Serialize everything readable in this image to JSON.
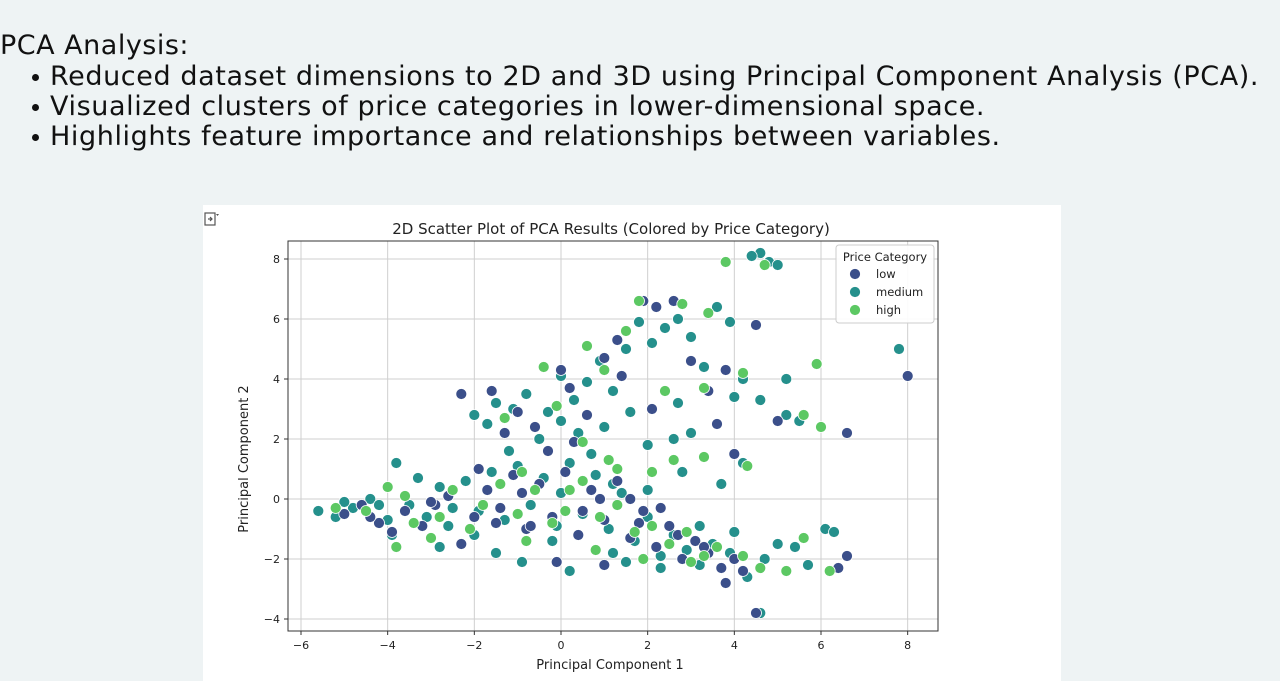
{
  "heading": "PCA Analysis:",
  "bullets": [
    "Reduced dataset dimensions to 2D and 3D using Principal Component Analysis (PCA).",
    "Visualized clusters of price categories in lower-dimensional space.",
    "Highlights feature importance and relationships between variables."
  ],
  "colors": {
    "low": "#3b4f8a",
    "medium": "#25908c",
    "high": "#5cc863",
    "page_bg": "#eef3f4",
    "grid": "#cfcfcf"
  },
  "chart_data": {
    "type": "scatter",
    "title": "2D Scatter Plot of PCA Results (Colored by Price Category)",
    "xlabel": "Principal Component 1",
    "ylabel": "Principal Component 2",
    "xlim": [
      -6.3,
      8.7
    ],
    "ylim": [
      -4.4,
      8.6
    ],
    "xticks": [
      -6,
      -4,
      -2,
      0,
      2,
      4,
      6,
      8
    ],
    "yticks": [
      -4,
      -2,
      0,
      2,
      4,
      6,
      8
    ],
    "xtick_labels": [
      "−6",
      "−4",
      "−2",
      "0",
      "2",
      "4",
      "6",
      "8"
    ],
    "ytick_labels": [
      "−4",
      "−2",
      "0",
      "2",
      "4",
      "6",
      "8"
    ],
    "grid": true,
    "legend": {
      "title": "Price Category",
      "placement": "top-right"
    },
    "series": [
      {
        "name": "low",
        "points": [
          [
            -5.0,
            -0.5
          ],
          [
            -4.6,
            -0.2
          ],
          [
            -4.2,
            -0.8
          ],
          [
            -3.9,
            -1.1
          ],
          [
            -3.6,
            -0.4
          ],
          [
            -3.2,
            -0.9
          ],
          [
            -2.9,
            -0.2
          ],
          [
            -2.6,
            0.1
          ],
          [
            -2.3,
            -1.5
          ],
          [
            -2.0,
            -0.6
          ],
          [
            -1.7,
            0.3
          ],
          [
            -1.4,
            -0.3
          ],
          [
            -1.1,
            0.8
          ],
          [
            -0.8,
            -1.0
          ],
          [
            -0.5,
            0.5
          ],
          [
            -0.2,
            -0.6
          ],
          [
            0.1,
            0.9
          ],
          [
            0.4,
            -1.2
          ],
          [
            0.7,
            0.3
          ],
          [
            1.0,
            -0.7
          ],
          [
            1.3,
            0.6
          ],
          [
            1.6,
            -1.3
          ],
          [
            1.9,
            -0.4
          ],
          [
            2.2,
            -1.6
          ],
          [
            2.5,
            -0.9
          ],
          [
            2.8,
            -2.0
          ],
          [
            3.1,
            -1.4
          ],
          [
            3.4,
            -1.8
          ],
          [
            3.7,
            -2.3
          ],
          [
            4.0,
            -2.0
          ],
          [
            4.5,
            -3.8
          ],
          [
            3.8,
            -2.8
          ],
          [
            6.6,
            -1.9
          ],
          [
            6.4,
            -2.3
          ],
          [
            -2.3,
            3.5
          ],
          [
            -1.6,
            3.6
          ],
          [
            -1.0,
            2.9
          ],
          [
            -0.6,
            2.4
          ],
          [
            0.2,
            3.7
          ],
          [
            0.6,
            2.8
          ],
          [
            1.0,
            4.7
          ],
          [
            1.4,
            4.1
          ],
          [
            1.9,
            6.6
          ],
          [
            2.2,
            6.4
          ],
          [
            2.6,
            6.6
          ],
          [
            3.0,
            4.6
          ],
          [
            3.4,
            3.6
          ],
          [
            4.5,
            5.8
          ],
          [
            3.6,
            2.5
          ],
          [
            4.0,
            1.5
          ],
          [
            5.0,
            2.6
          ],
          [
            6.6,
            2.2
          ],
          [
            8.0,
            4.1
          ],
          [
            -0.1,
            -2.1
          ],
          [
            1.0,
            -2.2
          ],
          [
            -1.3,
            2.2
          ],
          [
            0.3,
            1.9
          ],
          [
            2.1,
            3.0
          ],
          [
            -1.9,
            1.0
          ],
          [
            0.9,
            0.0
          ],
          [
            -0.3,
            1.6
          ],
          [
            -0.9,
            0.2
          ],
          [
            1.6,
            0.0
          ],
          [
            2.3,
            -0.3
          ],
          [
            -3.0,
            -0.1
          ],
          [
            0.0,
            4.3
          ],
          [
            1.3,
            5.3
          ],
          [
            3.8,
            4.3
          ],
          [
            0.5,
            -0.4
          ],
          [
            -0.7,
            -0.9
          ],
          [
            1.8,
            -0.8
          ],
          [
            2.7,
            -1.2
          ],
          [
            3.3,
            -1.6
          ],
          [
            4.2,
            -2.4
          ],
          [
            -4.4,
            -0.6
          ],
          [
            -1.5,
            -0.8
          ]
        ]
      },
      {
        "name": "medium",
        "points": [
          [
            -5.6,
            -0.4
          ],
          [
            -5.2,
            -0.6
          ],
          [
            -4.8,
            -0.3
          ],
          [
            -4.4,
            0.0
          ],
          [
            -4.0,
            -0.7
          ],
          [
            -3.8,
            1.2
          ],
          [
            -3.5,
            -0.2
          ],
          [
            -3.1,
            -0.6
          ],
          [
            -2.8,
            0.4
          ],
          [
            -2.5,
            -0.3
          ],
          [
            -2.2,
            0.6
          ],
          [
            -1.9,
            -0.4
          ],
          [
            -1.6,
            0.9
          ],
          [
            -1.3,
            -0.7
          ],
          [
            -1.0,
            1.1
          ],
          [
            -0.7,
            -0.2
          ],
          [
            -0.4,
            0.7
          ],
          [
            -0.1,
            -0.9
          ],
          [
            0.2,
            1.2
          ],
          [
            0.5,
            -0.5
          ],
          [
            0.8,
            0.8
          ],
          [
            1.1,
            -1.0
          ],
          [
            1.4,
            0.2
          ],
          [
            1.7,
            -1.4
          ],
          [
            2.0,
            -0.6
          ],
          [
            2.3,
            -1.9
          ],
          [
            2.6,
            -1.2
          ],
          [
            2.9,
            -1.7
          ],
          [
            3.2,
            -2.2
          ],
          [
            3.5,
            -1.5
          ],
          [
            3.9,
            -1.8
          ],
          [
            4.3,
            -2.6
          ],
          [
            4.7,
            -2.0
          ],
          [
            5.0,
            -1.5
          ],
          [
            5.4,
            -1.6
          ],
          [
            6.1,
            -1.0
          ],
          [
            6.3,
            -1.1
          ],
          [
            -2.0,
            2.8
          ],
          [
            -1.5,
            3.2
          ],
          [
            -1.1,
            3.0
          ],
          [
            -0.8,
            3.5
          ],
          [
            -0.3,
            2.9
          ],
          [
            0.0,
            4.1
          ],
          [
            0.3,
            3.3
          ],
          [
            0.6,
            3.9
          ],
          [
            0.9,
            4.6
          ],
          [
            1.2,
            3.6
          ],
          [
            1.5,
            5.0
          ],
          [
            1.8,
            5.9
          ],
          [
            2.1,
            5.2
          ],
          [
            2.4,
            5.7
          ],
          [
            2.7,
            6.0
          ],
          [
            3.0,
            5.4
          ],
          [
            3.3,
            4.4
          ],
          [
            3.6,
            6.4
          ],
          [
            3.9,
            5.9
          ],
          [
            4.2,
            4.0
          ],
          [
            4.6,
            8.2
          ],
          [
            4.8,
            7.9
          ],
          [
            5.0,
            7.8
          ],
          [
            4.4,
            8.1
          ],
          [
            4.0,
            3.4
          ],
          [
            4.6,
            3.3
          ],
          [
            5.2,
            2.8
          ],
          [
            5.5,
            2.6
          ],
          [
            5.2,
            4.0
          ],
          [
            7.8,
            5.0
          ],
          [
            4.2,
            1.2
          ],
          [
            3.0,
            2.2
          ],
          [
            2.0,
            1.8
          ],
          [
            2.8,
            0.9
          ],
          [
            2.6,
            2.0
          ],
          [
            1.0,
            2.4
          ],
          [
            0.4,
            2.2
          ],
          [
            -0.5,
            2.0
          ],
          [
            -1.7,
            2.5
          ],
          [
            -0.9,
            -2.1
          ],
          [
            0.2,
            -2.4
          ],
          [
            1.2,
            -1.8
          ],
          [
            -1.5,
            -1.8
          ],
          [
            -2.8,
            -1.6
          ],
          [
            -3.9,
            -1.2
          ],
          [
            -0.2,
            -1.4
          ],
          [
            1.5,
            -2.1
          ],
          [
            2.3,
            -2.3
          ],
          [
            4.6,
            -3.8
          ],
          [
            5.7,
            -2.2
          ],
          [
            -3.3,
            0.7
          ],
          [
            -2.0,
            -1.2
          ],
          [
            0.0,
            0.2
          ],
          [
            1.2,
            0.5
          ],
          [
            2.0,
            0.3
          ],
          [
            3.2,
            -0.9
          ],
          [
            4.0,
            -1.1
          ],
          [
            -1.2,
            1.6
          ],
          [
            0.7,
            1.5
          ],
          [
            3.7,
            0.5
          ],
          [
            2.7,
            3.2
          ],
          [
            1.6,
            2.9
          ],
          [
            0.0,
            2.6
          ],
          [
            -2.6,
            -0.9
          ],
          [
            -4.2,
            -0.2
          ],
          [
            -5.0,
            -0.1
          ]
        ]
      },
      {
        "name": "high",
        "points": [
          [
            -5.2,
            -0.3
          ],
          [
            -4.5,
            -0.4
          ],
          [
            -3.8,
            -1.6
          ],
          [
            -3.0,
            -1.3
          ],
          [
            -2.5,
            0.3
          ],
          [
            -2.1,
            -1.0
          ],
          [
            -1.8,
            -0.2
          ],
          [
            -1.4,
            0.5
          ],
          [
            -1.0,
            -0.5
          ],
          [
            -0.6,
            0.3
          ],
          [
            -0.2,
            -0.8
          ],
          [
            0.1,
            -0.4
          ],
          [
            0.5,
            0.6
          ],
          [
            0.9,
            -0.6
          ],
          [
            1.3,
            -0.2
          ],
          [
            1.7,
            -1.1
          ],
          [
            2.1,
            -0.9
          ],
          [
            2.5,
            -1.5
          ],
          [
            2.9,
            -1.1
          ],
          [
            3.3,
            -1.9
          ],
          [
            3.6,
            -1.6
          ],
          [
            4.2,
            -1.9
          ],
          [
            4.6,
            -2.3
          ],
          [
            5.2,
            -2.4
          ],
          [
            5.6,
            -1.3
          ],
          [
            6.2,
            -2.4
          ],
          [
            -4.0,
            0.4
          ],
          [
            -3.4,
            -0.8
          ],
          [
            -0.4,
            4.4
          ],
          [
            0.6,
            5.1
          ],
          [
            1.0,
            4.3
          ],
          [
            1.5,
            5.6
          ],
          [
            1.8,
            6.6
          ],
          [
            2.8,
            6.5
          ],
          [
            3.4,
            6.2
          ],
          [
            3.8,
            7.9
          ],
          [
            4.7,
            7.8
          ],
          [
            5.6,
            2.8
          ],
          [
            5.9,
            4.5
          ],
          [
            6.0,
            2.4
          ],
          [
            4.3,
            1.1
          ],
          [
            3.3,
            1.4
          ],
          [
            2.6,
            1.3
          ],
          [
            2.1,
            0.9
          ],
          [
            1.3,
            1.0
          ],
          [
            0.5,
            1.9
          ],
          [
            2.4,
            3.6
          ],
          [
            3.3,
            3.7
          ],
          [
            4.2,
            4.2
          ],
          [
            -0.1,
            3.1
          ],
          [
            -1.3,
            2.7
          ],
          [
            -0.8,
            -1.4
          ],
          [
            0.8,
            -1.7
          ],
          [
            1.9,
            -2.0
          ],
          [
            3.0,
            -2.1
          ],
          [
            -2.8,
            -0.6
          ],
          [
            -3.6,
            0.1
          ],
          [
            1.1,
            1.3
          ],
          [
            0.2,
            0.3
          ],
          [
            -0.9,
            0.9
          ]
        ]
      }
    ]
  }
}
